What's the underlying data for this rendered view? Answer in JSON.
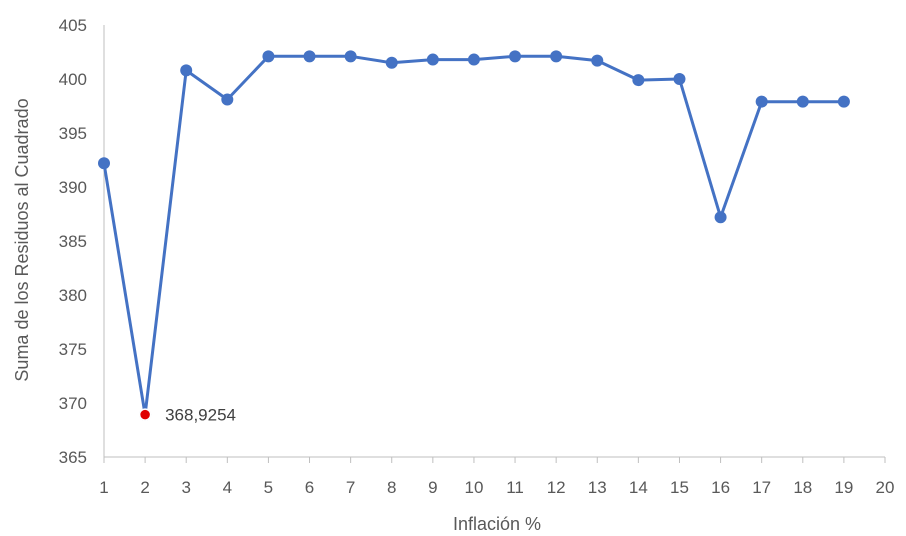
{
  "chart_data": {
    "type": "line",
    "title": "",
    "xlabel": "Inflación %",
    "ylabel": "Suma de los Residuos al Cuadrado",
    "xlim": [
      1,
      20
    ],
    "ylim": [
      365,
      405
    ],
    "x_ticks": [
      1,
      2,
      3,
      4,
      5,
      6,
      7,
      8,
      9,
      10,
      11,
      12,
      13,
      14,
      15,
      16,
      17,
      18,
      19,
      20
    ],
    "y_ticks": [
      365,
      370,
      375,
      380,
      385,
      390,
      395,
      400,
      405
    ],
    "grid": false,
    "legend": "none",
    "series": [
      {
        "color": "#4472C4",
        "x": [
          1,
          2,
          3,
          4,
          5,
          6,
          7,
          8,
          9,
          10,
          11,
          12,
          13,
          14,
          15,
          16,
          17,
          18,
          19
        ],
        "y": [
          392.2,
          368.9254,
          400.8,
          398.1,
          402.1,
          402.1,
          402.1,
          401.5,
          401.8,
          401.8,
          402.1,
          402.1,
          401.7,
          399.9,
          400.0,
          387.2,
          397.9,
          397.9,
          397.9
        ]
      }
    ],
    "highlight": {
      "x": 2,
      "y": 368.9254,
      "label": "368,9254",
      "color": "#E00000"
    }
  }
}
